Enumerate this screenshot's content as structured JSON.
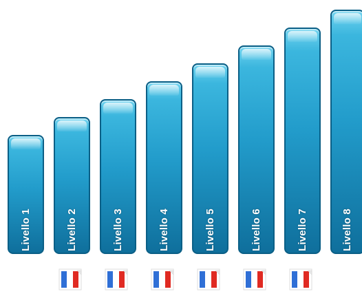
{
  "levels": [
    {
      "label": "Livello 1",
      "flag_icon": "french-flag-icon"
    },
    {
      "label": "Livello 2",
      "flag_icon": "french-flag-icon"
    },
    {
      "label": "Livello 3",
      "flag_icon": "french-flag-icon"
    },
    {
      "label": "Livello 4",
      "flag_icon": "french-flag-icon"
    },
    {
      "label": "Livello 5",
      "flag_icon": "french-flag-icon"
    },
    {
      "label": "Livello 6",
      "flag_icon": "french-flag-icon"
    },
    {
      "label": "Livello 7",
      "flag_icon": "french-flag-icon"
    },
    {
      "label": "Livello 8"
    }
  ],
  "colors": {
    "bar_top": "#6fd3ef",
    "bar_bottom": "#0f6f9c",
    "bar_border": "#0b5f86",
    "flag_blue": "#2f6fd6",
    "flag_white": "#ffffff",
    "flag_red": "#e02a22"
  }
}
